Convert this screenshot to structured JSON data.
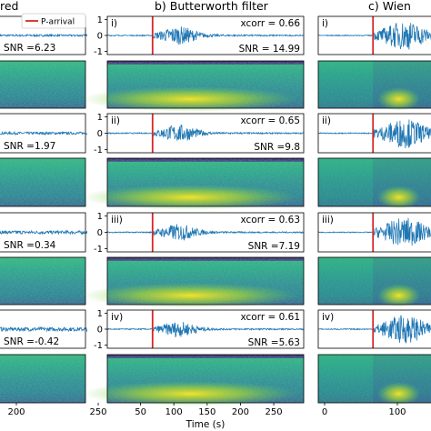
{
  "titles": {
    "a_suffix": "red",
    "b": "b) Butterworth filter",
    "c": "c) Wien"
  },
  "x_axis": {
    "label": "Time (s)",
    "ticks_a": [
      "200",
      "250"
    ],
    "ticks_b": [
      "50",
      "100",
      "150",
      "200",
      "250"
    ],
    "ticks_c": [
      "0",
      "100"
    ]
  },
  "y_ticks": [
    "1",
    "0",
    "-1"
  ],
  "legend": {
    "label": "P-arrival",
    "color": "#d62728"
  },
  "colors": {
    "waveform": "#1f77b4",
    "p_arrival": "#d62728"
  },
  "chart_data": {
    "type": "line",
    "rows": [
      {
        "label": "i)",
        "snr": "SNR =6.23",
        "xcorr": "xcorr = 0.66",
        "snr_b": "SNR = 14.99"
      },
      {
        "label": "ii)",
        "snr": "SNR =1.97",
        "xcorr": "xcorr = 0.65",
        "snr_b": "SNR =9.8"
      },
      {
        "label": "iii)",
        "snr": "SNR =0.34",
        "xcorr": "xcorr = 0.63",
        "snr_b": "SNR =7.19"
      },
      {
        "label": "iv)",
        "snr": "SNR =-0.42",
        "xcorr": "xcorr = 0.61",
        "snr_b": "SNR =5.63"
      }
    ],
    "p_arrival_time_s": 68,
    "xlim": [
      0,
      295
    ],
    "ylim": [
      -1.2,
      1.2
    ]
  }
}
